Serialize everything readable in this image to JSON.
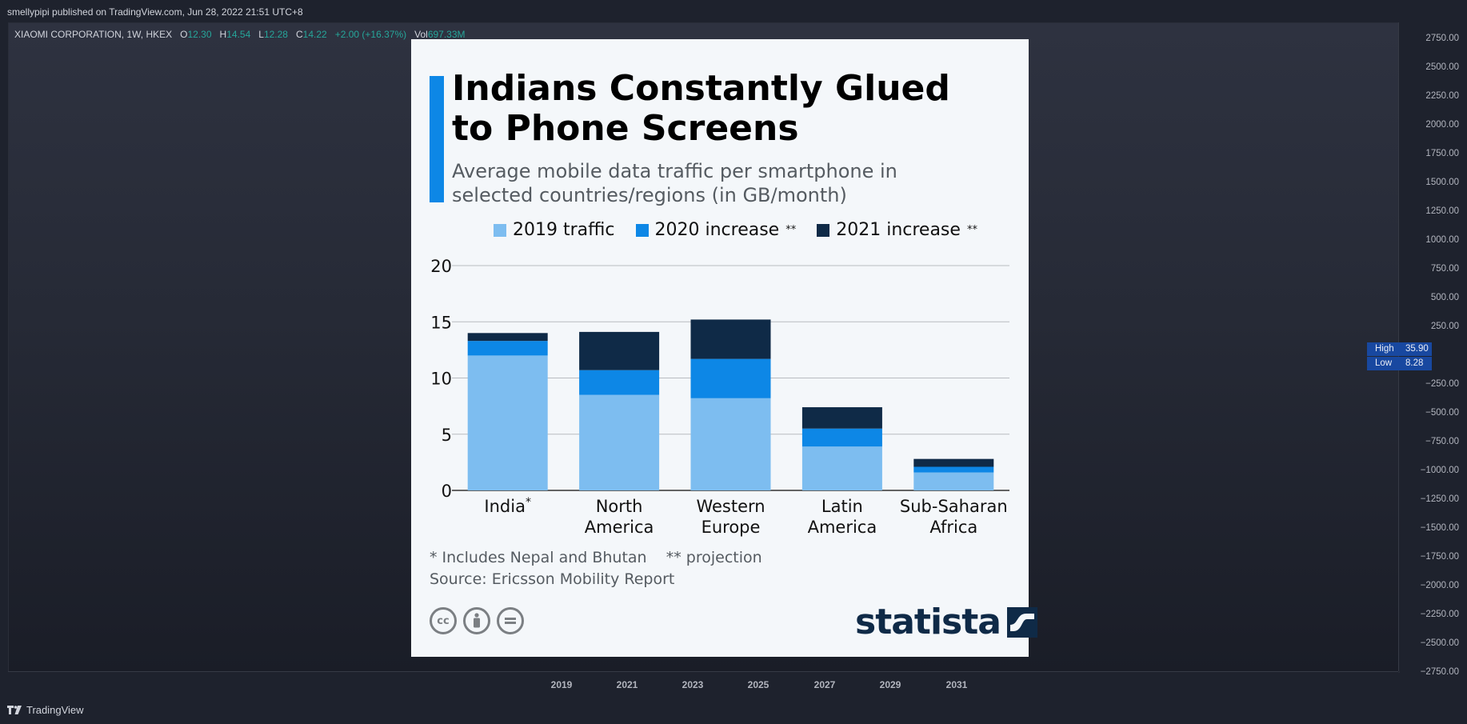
{
  "topbar": {
    "publish_text": "smellypipi published on TradingView.com, Jun 28, 2022 21:51 UTC+8"
  },
  "symbol_legend": {
    "symbol": "XIAOMI CORPORATION, 1W, HKEX",
    "o_label": "O",
    "o_value": "12.30",
    "h_label": "H",
    "h_value": "14.54",
    "l_label": "L",
    "l_value": "12.28",
    "c_label": "C",
    "c_value": "14.22",
    "change": "+2.00 (+16.37%)",
    "vol_label": "Vol",
    "vol_value": "697.33M"
  },
  "price_axis": {
    "ticks": [
      "2750.00",
      "2500.00",
      "2250.00",
      "2000.00",
      "1750.00",
      "1500.00",
      "1250.00",
      "1000.00",
      "750.00",
      "500.00",
      "250.00",
      "−250.00",
      "−500.00",
      "−750.00",
      "−1000.00",
      "−1250.00",
      "−1500.00",
      "−1750.00",
      "−2000.00",
      "−2250.00",
      "−2500.00",
      "−2750.00"
    ],
    "high_label": "High",
    "high_value": "35.90",
    "low_label": "Low",
    "low_value": "8.28"
  },
  "time_axis": {
    "labels": [
      "2019",
      "2021",
      "2023",
      "2025",
      "2027",
      "2029",
      "2031"
    ]
  },
  "footer": {
    "brand": "TradingView"
  },
  "infographic": {
    "title": "Indians Constantly Glued to Phone Screens",
    "subtitle": "Average mobile data traffic per smartphone in selected countries/regions (in GB/month)",
    "note": "* Includes Nepal and Bhutan    ** projection",
    "source": "Source: Ericsson Mobility Report",
    "cc_icons": [
      "cc-icon",
      "attribution-icon",
      "no-derivatives-icon"
    ],
    "cc_label": "cc",
    "brand": "statista",
    "colors": {
      "s2019": "#7dbdf0",
      "s2020": "#0d87e6",
      "s2021": "#0f2a47",
      "accent": "#0d87e6"
    }
  },
  "chart_data": {
    "type": "bar",
    "stacked": true,
    "title": "Indians Constantly Glued to Phone Screens",
    "ylabel": "GB/month",
    "ylim": [
      0,
      20
    ],
    "yticks": [
      "0",
      "5",
      "10",
      "15",
      "20"
    ],
    "categories": [
      [
        "India",
        "*"
      ],
      [
        "North",
        "America"
      ],
      [
        "Western",
        "Europe"
      ],
      [
        "Latin",
        "America"
      ],
      [
        "Sub-Saharan",
        "Africa"
      ]
    ],
    "series": [
      {
        "name": "2019 traffic",
        "values": [
          12.0,
          8.5,
          8.2,
          3.9,
          1.6
        ]
      },
      {
        "name": "2020 increase",
        "sup": "**",
        "values": [
          1.3,
          2.2,
          3.5,
          1.6,
          0.5
        ]
      },
      {
        "name": "2021 increase",
        "sup": "**",
        "values": [
          0.7,
          3.4,
          3.5,
          1.9,
          0.7
        ]
      }
    ],
    "legend_position": "top"
  }
}
